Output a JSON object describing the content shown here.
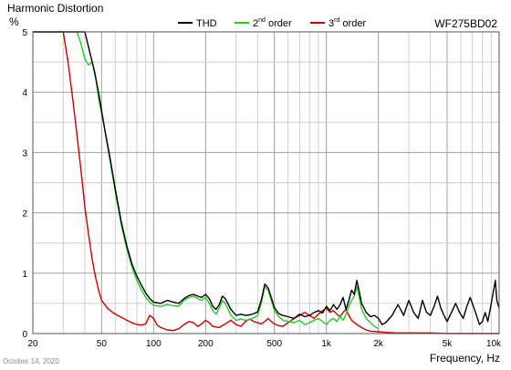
{
  "chart_data": {
    "type": "line",
    "title": "Harmonic Distortion",
    "ylabel": "%",
    "xlabel": "Frequency, Hz",
    "model": "WF275BD02",
    "x_scale": "log",
    "xlim": [
      20,
      10000
    ],
    "ylim": [
      0,
      5
    ],
    "grid": true,
    "legend_position": "top-center",
    "y_ticks": [
      "0",
      "1",
      "2",
      "3",
      "4",
      "5"
    ],
    "x_ticks": [
      {
        "value": 20,
        "label": "20"
      },
      {
        "value": 50,
        "label": "50"
      },
      {
        "value": 100,
        "label": "100"
      },
      {
        "value": 200,
        "label": "200"
      },
      {
        "value": 500,
        "label": "500"
      },
      {
        "value": 1000,
        "label": "1k"
      },
      {
        "value": 2000,
        "label": "2k"
      },
      {
        "value": 5000,
        "label": "5k"
      },
      {
        "value": 10000,
        "label": "10k"
      }
    ],
    "series": [
      {
        "name": "THD",
        "color": "#000000",
        "points": [
          [
            20,
            5
          ],
          [
            38,
            5
          ],
          [
            40,
            5
          ],
          [
            42,
            4.75
          ],
          [
            45,
            4.4
          ],
          [
            48,
            4.0
          ],
          [
            52,
            3.4
          ],
          [
            56,
            2.9
          ],
          [
            60,
            2.4
          ],
          [
            65,
            1.85
          ],
          [
            70,
            1.45
          ],
          [
            75,
            1.15
          ],
          [
            80,
            0.95
          ],
          [
            85,
            0.8
          ],
          [
            90,
            0.67
          ],
          [
            95,
            0.58
          ],
          [
            100,
            0.52
          ],
          [
            110,
            0.5
          ],
          [
            120,
            0.55
          ],
          [
            130,
            0.52
          ],
          [
            140,
            0.5
          ],
          [
            150,
            0.58
          ],
          [
            160,
            0.63
          ],
          [
            170,
            0.65
          ],
          [
            180,
            0.62
          ],
          [
            190,
            0.6
          ],
          [
            200,
            0.65
          ],
          [
            210,
            0.58
          ],
          [
            220,
            0.45
          ],
          [
            230,
            0.4
          ],
          [
            240,
            0.48
          ],
          [
            250,
            0.62
          ],
          [
            260,
            0.58
          ],
          [
            280,
            0.4
          ],
          [
            300,
            0.3
          ],
          [
            320,
            0.32
          ],
          [
            340,
            0.3
          ],
          [
            360,
            0.31
          ],
          [
            380,
            0.33
          ],
          [
            400,
            0.36
          ],
          [
            420,
            0.55
          ],
          [
            440,
            0.82
          ],
          [
            460,
            0.76
          ],
          [
            480,
            0.6
          ],
          [
            500,
            0.43
          ],
          [
            530,
            0.33
          ],
          [
            560,
            0.3
          ],
          [
            600,
            0.28
          ],
          [
            650,
            0.25
          ],
          [
            700,
            0.32
          ],
          [
            750,
            0.28
          ],
          [
            800,
            0.3
          ],
          [
            850,
            0.35
          ],
          [
            900,
            0.38
          ],
          [
            950,
            0.34
          ],
          [
            1000,
            0.45
          ],
          [
            1050,
            0.38
          ],
          [
            1100,
            0.48
          ],
          [
            1150,
            0.4
          ],
          [
            1200,
            0.48
          ],
          [
            1250,
            0.6
          ],
          [
            1300,
            0.4
          ],
          [
            1350,
            0.55
          ],
          [
            1400,
            0.72
          ],
          [
            1450,
            0.65
          ],
          [
            1500,
            0.88
          ],
          [
            1550,
            0.7
          ],
          [
            1600,
            0.5
          ],
          [
            1700,
            0.35
          ],
          [
            1800,
            0.28
          ],
          [
            1900,
            0.3
          ],
          [
            2000,
            0.25
          ],
          [
            2100,
            0.15
          ],
          [
            2200,
            0.18
          ],
          [
            2400,
            0.3
          ],
          [
            2600,
            0.48
          ],
          [
            2800,
            0.3
          ],
          [
            3000,
            0.55
          ],
          [
            3200,
            0.35
          ],
          [
            3400,
            0.25
          ],
          [
            3600,
            0.55
          ],
          [
            3800,
            0.35
          ],
          [
            4000,
            0.3
          ],
          [
            4200,
            0.45
          ],
          [
            4400,
            0.62
          ],
          [
            4600,
            0.42
          ],
          [
            4800,
            0.3
          ],
          [
            5000,
            0.2
          ],
          [
            5300,
            0.35
          ],
          [
            5600,
            0.5
          ],
          [
            5900,
            0.35
          ],
          [
            6200,
            0.25
          ],
          [
            6500,
            0.45
          ],
          [
            6800,
            0.6
          ],
          [
            7100,
            0.45
          ],
          [
            7400,
            0.3
          ],
          [
            7700,
            0.15
          ],
          [
            8000,
            0.2
          ],
          [
            8300,
            0.35
          ],
          [
            8600,
            0.2
          ],
          [
            8900,
            0.42
          ],
          [
            9200,
            0.65
          ],
          [
            9500,
            0.88
          ],
          [
            9700,
            0.55
          ],
          [
            10000,
            0.42
          ]
        ]
      },
      {
        "name": "2nd order",
        "color": "#22cc22",
        "points": [
          [
            20,
            5
          ],
          [
            36,
            5
          ],
          [
            38,
            4.8
          ],
          [
            40,
            4.55
          ],
          [
            42,
            4.45
          ],
          [
            44,
            4.5
          ],
          [
            46,
            4.3
          ],
          [
            48,
            3.9
          ],
          [
            52,
            3.4
          ],
          [
            56,
            2.85
          ],
          [
            60,
            2.35
          ],
          [
            65,
            1.8
          ],
          [
            70,
            1.4
          ],
          [
            75,
            1.1
          ],
          [
            80,
            0.88
          ],
          [
            85,
            0.72
          ],
          [
            90,
            0.6
          ],
          [
            95,
            0.52
          ],
          [
            100,
            0.47
          ],
          [
            110,
            0.45
          ],
          [
            120,
            0.48
          ],
          [
            130,
            0.46
          ],
          [
            140,
            0.45
          ],
          [
            150,
            0.55
          ],
          [
            160,
            0.6
          ],
          [
            170,
            0.62
          ],
          [
            180,
            0.58
          ],
          [
            190,
            0.55
          ],
          [
            200,
            0.6
          ],
          [
            210,
            0.5
          ],
          [
            220,
            0.38
          ],
          [
            230,
            0.32
          ],
          [
            240,
            0.42
          ],
          [
            250,
            0.55
          ],
          [
            260,
            0.5
          ],
          [
            280,
            0.3
          ],
          [
            300,
            0.22
          ],
          [
            320,
            0.24
          ],
          [
            340,
            0.22
          ],
          [
            360,
            0.23
          ],
          [
            380,
            0.26
          ],
          [
            400,
            0.3
          ],
          [
            420,
            0.5
          ],
          [
            440,
            0.78
          ],
          [
            460,
            0.72
          ],
          [
            480,
            0.55
          ],
          [
            500,
            0.38
          ],
          [
            530,
            0.28
          ],
          [
            560,
            0.22
          ],
          [
            600,
            0.2
          ],
          [
            650,
            0.18
          ],
          [
            700,
            0.22
          ],
          [
            750,
            0.15
          ],
          [
            800,
            0.18
          ],
          [
            850,
            0.22
          ],
          [
            900,
            0.25
          ],
          [
            950,
            0.2
          ],
          [
            1000,
            0.15
          ],
          [
            1050,
            0.22
          ],
          [
            1100,
            0.25
          ],
          [
            1150,
            0.2
          ],
          [
            1200,
            0.28
          ],
          [
            1250,
            0.22
          ],
          [
            1300,
            0.32
          ],
          [
            1350,
            0.45
          ],
          [
            1400,
            0.55
          ],
          [
            1450,
            0.62
          ],
          [
            1500,
            0.78
          ],
          [
            1550,
            0.6
          ],
          [
            1600,
            0.4
          ],
          [
            1700,
            0.25
          ],
          [
            1800,
            0.18
          ],
          [
            1900,
            0.12
          ],
          [
            2000,
            0.08
          ]
        ]
      },
      {
        "name": "3rd order",
        "color": "#cc0000",
        "points": [
          [
            20,
            5
          ],
          [
            30,
            5
          ],
          [
            32,
            4.5
          ],
          [
            34,
            3.9
          ],
          [
            36,
            3.3
          ],
          [
            38,
            2.7
          ],
          [
            40,
            2.1
          ],
          [
            42,
            1.65
          ],
          [
            44,
            1.25
          ],
          [
            46,
            0.95
          ],
          [
            48,
            0.72
          ],
          [
            50,
            0.55
          ],
          [
            54,
            0.42
          ],
          [
            58,
            0.35
          ],
          [
            62,
            0.3
          ],
          [
            66,
            0.26
          ],
          [
            70,
            0.22
          ],
          [
            75,
            0.18
          ],
          [
            80,
            0.15
          ],
          [
            85,
            0.14
          ],
          [
            90,
            0.16
          ],
          [
            95,
            0.3
          ],
          [
            100,
            0.25
          ],
          [
            105,
            0.14
          ],
          [
            110,
            0.1
          ],
          [
            120,
            0.06
          ],
          [
            130,
            0.05
          ],
          [
            140,
            0.08
          ],
          [
            150,
            0.15
          ],
          [
            160,
            0.2
          ],
          [
            170,
            0.18
          ],
          [
            180,
            0.12
          ],
          [
            190,
            0.16
          ],
          [
            200,
            0.22
          ],
          [
            210,
            0.18
          ],
          [
            220,
            0.12
          ],
          [
            240,
            0.1
          ],
          [
            260,
            0.16
          ],
          [
            280,
            0.22
          ],
          [
            300,
            0.15
          ],
          [
            320,
            0.12
          ],
          [
            340,
            0.2
          ],
          [
            360,
            0.24
          ],
          [
            380,
            0.2
          ],
          [
            400,
            0.18
          ],
          [
            420,
            0.16
          ],
          [
            440,
            0.2
          ],
          [
            460,
            0.25
          ],
          [
            480,
            0.2
          ],
          [
            500,
            0.16
          ],
          [
            530,
            0.13
          ],
          [
            560,
            0.12
          ],
          [
            600,
            0.18
          ],
          [
            650,
            0.25
          ],
          [
            700,
            0.3
          ],
          [
            750,
            0.35
          ],
          [
            800,
            0.3
          ],
          [
            850,
            0.25
          ],
          [
            900,
            0.32
          ],
          [
            950,
            0.38
          ],
          [
            1000,
            0.42
          ],
          [
            1050,
            0.35
          ],
          [
            1100,
            0.38
          ],
          [
            1150,
            0.32
          ],
          [
            1200,
            0.28
          ],
          [
            1250,
            0.35
          ],
          [
            1300,
            0.4
          ],
          [
            1350,
            0.3
          ],
          [
            1400,
            0.22
          ],
          [
            1500,
            0.15
          ],
          [
            1600,
            0.1
          ],
          [
            1700,
            0.06
          ],
          [
            1800,
            0.04
          ],
          [
            2000,
            0.03
          ],
          [
            2200,
            0.02
          ],
          [
            2500,
            0.01
          ],
          [
            3000,
            0.01
          ],
          [
            4000,
            0.01
          ],
          [
            5000,
            0.0
          ],
          [
            7000,
            0.0
          ],
          [
            10000,
            0.0
          ]
        ]
      }
    ]
  },
  "footer": {
    "date": "October 14, 2020"
  }
}
